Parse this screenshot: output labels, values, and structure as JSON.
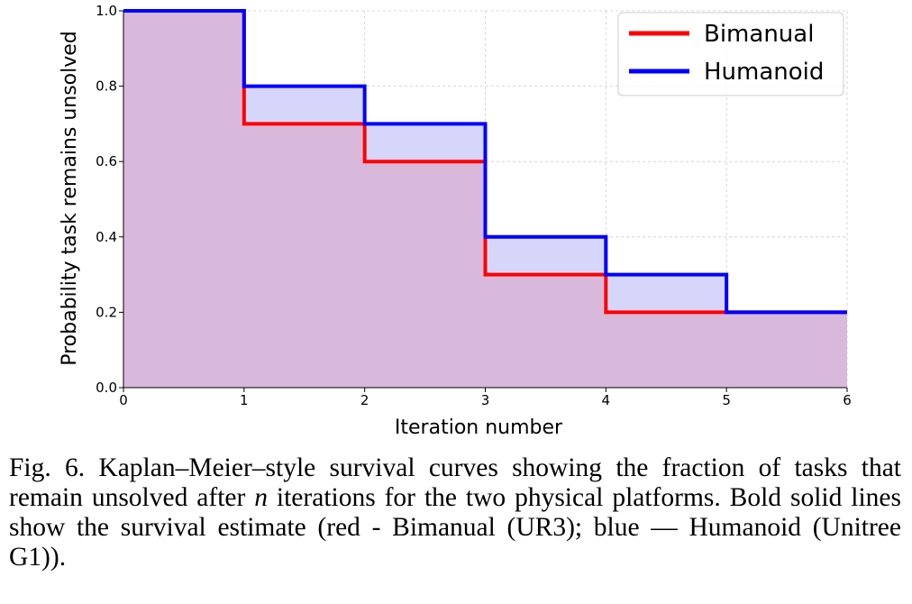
{
  "chart_data": {
    "type": "line",
    "step": "post",
    "x": [
      0,
      1,
      2,
      3,
      4,
      5,
      6
    ],
    "series": [
      {
        "name": "Bimanual",
        "color": "#ff0000",
        "values": [
          1.0,
          0.7,
          0.6,
          0.3,
          0.2,
          0.2,
          0.2
        ]
      },
      {
        "name": "Humanoid",
        "color": "#0000ff",
        "values": [
          1.0,
          0.8,
          0.7,
          0.4,
          0.3,
          0.2,
          0.2
        ]
      }
    ],
    "fill_colors": {
      "Bimanual": "#d8b9dc",
      "Humanoid": "#d6d6fa"
    },
    "xlabel": "Iteration number",
    "ylabel": "Probability task remains unsolved",
    "xlim": [
      0,
      6
    ],
    "ylim": [
      0,
      1.0
    ],
    "xticks": [
      "0",
      "1",
      "2",
      "3",
      "4",
      "5",
      "6"
    ],
    "yticks": [
      "0.0",
      "0.2",
      "0.4",
      "0.6",
      "0.8",
      "1.0"
    ],
    "grid": true,
    "legend_position": "top-right"
  },
  "caption": {
    "part1": "Fig. 6. Kaplan–Meier–style survival curves showing the fraction of tasks that remain unsolved after ",
    "variable": "n",
    "part2": " iterations for the two physical platforms. Bold solid lines show the survival estimate (red - Bimanual (UR3); blue — Humanoid (Unitree G1))."
  }
}
